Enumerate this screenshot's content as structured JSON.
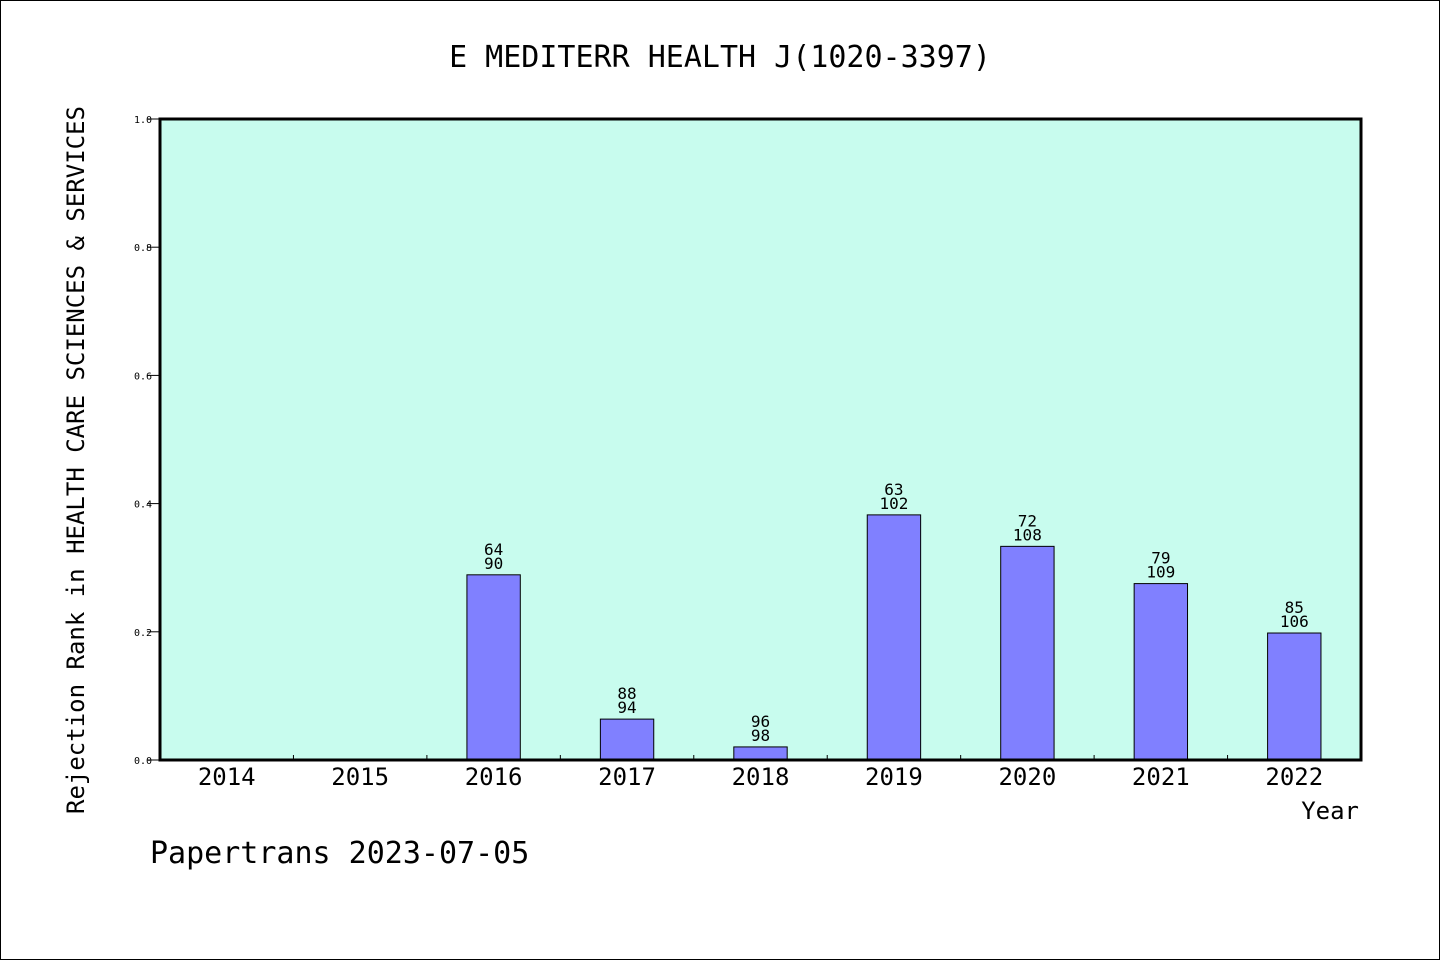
{
  "chart_data": {
    "type": "bar",
    "title": "E MEDITERR HEALTH J(1020-3397)",
    "xlabel": "Year",
    "ylabel": "Rejection Rank in HEALTH CARE SCIENCES & SERVICES",
    "categories": [
      "2014",
      "2015",
      "2016",
      "2017",
      "2018",
      "2019",
      "2020",
      "2021",
      "2022"
    ],
    "values": [
      0,
      0,
      0.2889,
      0.0638,
      0.0204,
      0.3824,
      0.3333,
      0.2752,
      0.1981
    ],
    "bar_labels": [
      null,
      null,
      {
        "top": "64",
        "bottom": "90"
      },
      {
        "top": "88",
        "bottom": "94"
      },
      {
        "top": "96",
        "bottom": "98"
      },
      {
        "top": "63",
        "bottom": "102"
      },
      {
        "top": "72",
        "bottom": "108"
      },
      {
        "top": "79",
        "bottom": "109"
      },
      {
        "top": "85",
        "bottom": "106"
      }
    ],
    "ylim": [
      0,
      1.0
    ],
    "yticks": [
      "0.0",
      "0.2",
      "0.4",
      "0.6",
      "0.8",
      "1.0"
    ],
    "grid": false,
    "colors": {
      "plot_background": "#c8fcee",
      "bar_fill": "#8080ff",
      "bar_stroke": "#000000",
      "axis": "#000000"
    }
  },
  "footer": {
    "text": "Papertrans 2023-07-05"
  }
}
